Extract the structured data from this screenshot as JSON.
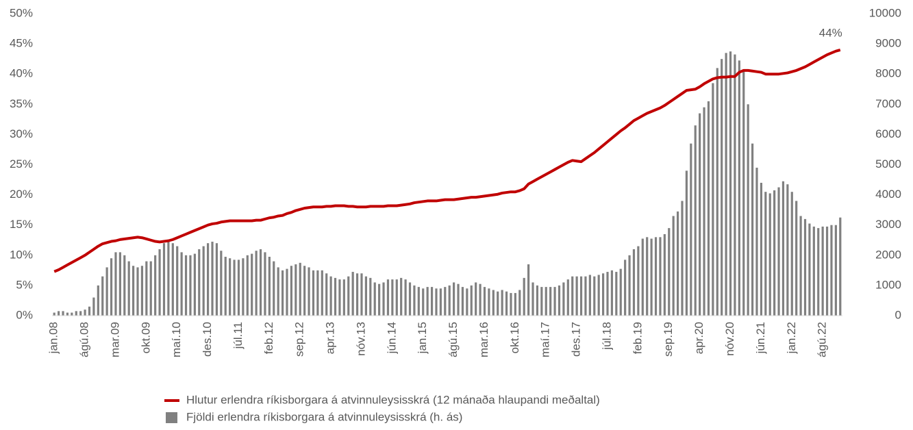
{
  "chart_data": {
    "type": "bar_line",
    "categories": [
      "jan.08",
      null,
      null,
      null,
      null,
      null,
      null,
      "ágú.08",
      null,
      null,
      null,
      null,
      null,
      null,
      "mar.09",
      null,
      null,
      null,
      null,
      null,
      null,
      "okt.09",
      null,
      null,
      null,
      null,
      null,
      null,
      "maí.10",
      null,
      null,
      null,
      null,
      null,
      null,
      "des.10",
      null,
      null,
      null,
      null,
      null,
      null,
      "júl.11",
      null,
      null,
      null,
      null,
      null,
      null,
      "feb.12",
      null,
      null,
      null,
      null,
      null,
      null,
      "sep.12",
      null,
      null,
      null,
      null,
      null,
      null,
      "apr.13",
      null,
      null,
      null,
      null,
      null,
      null,
      "nóv.13",
      null,
      null,
      null,
      null,
      null,
      null,
      "jún.14",
      null,
      null,
      null,
      null,
      null,
      null,
      "jan.15",
      null,
      null,
      null,
      null,
      null,
      null,
      "ágú.15",
      null,
      null,
      null,
      null,
      null,
      null,
      "mar.16",
      null,
      null,
      null,
      null,
      null,
      null,
      "okt.16",
      null,
      null,
      null,
      null,
      null,
      null,
      "maí.17",
      null,
      null,
      null,
      null,
      null,
      null,
      "des.17",
      null,
      null,
      null,
      null,
      null,
      null,
      "júl.18",
      null,
      null,
      null,
      null,
      null,
      null,
      "feb.19",
      null,
      null,
      null,
      null,
      null,
      null,
      "sep.19",
      null,
      null,
      null,
      null,
      null,
      null,
      "apr.20",
      null,
      null,
      null,
      null,
      null,
      null,
      "nóv.20",
      null,
      null,
      null,
      null,
      null,
      null,
      "jún.21",
      null,
      null,
      null,
      null,
      null,
      null,
      "jan.22",
      null,
      null,
      null,
      null,
      null,
      null,
      "ágú.22",
      null,
      null,
      null,
      null
    ],
    "series": [
      {
        "name": "Hlutur erlendra ríkisborgara á atvinnuleysisskrá (12 mánaða hlaupandi meðaltal)",
        "kind": "line",
        "color": "#c00000",
        "values": [
          7.3,
          7.6,
          8.0,
          8.4,
          8.8,
          9.2,
          9.6,
          10.0,
          10.5,
          11.0,
          11.5,
          11.9,
          12.1,
          12.3,
          12.4,
          12.6,
          12.7,
          12.8,
          12.9,
          13.0,
          12.9,
          12.7,
          12.5,
          12.3,
          12.2,
          12.3,
          12.4,
          12.6,
          12.9,
          13.2,
          13.5,
          13.8,
          14.1,
          14.4,
          14.7,
          15.0,
          15.2,
          15.3,
          15.5,
          15.6,
          15.7,
          15.7,
          15.7,
          15.7,
          15.7,
          15.7,
          15.8,
          15.8,
          16.0,
          16.2,
          16.3,
          16.5,
          16.6,
          16.9,
          17.1,
          17.4,
          17.6,
          17.8,
          17.9,
          18.0,
          18.0,
          18.0,
          18.1,
          18.1,
          18.2,
          18.2,
          18.2,
          18.1,
          18.1,
          18.0,
          18.0,
          18.0,
          18.1,
          18.1,
          18.1,
          18.1,
          18.2,
          18.2,
          18.2,
          18.3,
          18.4,
          18.5,
          18.7,
          18.8,
          18.9,
          19.0,
          19.0,
          19.0,
          19.1,
          19.2,
          19.2,
          19.2,
          19.3,
          19.4,
          19.5,
          19.6,
          19.6,
          19.7,
          19.8,
          19.9,
          20.0,
          20.1,
          20.3,
          20.4,
          20.5,
          20.5,
          20.7,
          21.0,
          21.8,
          22.2,
          22.6,
          23.0,
          23.4,
          23.8,
          24.2,
          24.6,
          25.0,
          25.4,
          25.7,
          25.6,
          25.5,
          26.0,
          26.5,
          27.0,
          27.6,
          28.2,
          28.8,
          29.4,
          30.0,
          30.6,
          31.1,
          31.7,
          32.3,
          32.7,
          33.1,
          33.5,
          33.8,
          34.1,
          34.4,
          34.8,
          35.3,
          35.8,
          36.3,
          36.8,
          37.3,
          37.4,
          37.5,
          37.9,
          38.4,
          38.8,
          39.2,
          39.4,
          39.5,
          39.5,
          39.6,
          39.6,
          40.3,
          40.6,
          40.6,
          40.5,
          40.4,
          40.3,
          40.0,
          40.0,
          40.0,
          40.0,
          40.1,
          40.2,
          40.4,
          40.6,
          40.9,
          41.2,
          41.6,
          42.0,
          42.4,
          42.8,
          43.2,
          43.5,
          43.8,
          44.0
        ],
        "value_labels": [
          null,
          null,
          null,
          null,
          null,
          null,
          null,
          null,
          null,
          null,
          null,
          null,
          null,
          null,
          null,
          null,
          null,
          null,
          null,
          null,
          null,
          null,
          null,
          null,
          null,
          null,
          null,
          null,
          null,
          null,
          null,
          null,
          null,
          null,
          null,
          null,
          null,
          null,
          null,
          null,
          null,
          null,
          null,
          null,
          null,
          null,
          null,
          null,
          null,
          null,
          null,
          null,
          null,
          null,
          null,
          null,
          null,
          null,
          null,
          null,
          null,
          null,
          null,
          null,
          null,
          null,
          null,
          null,
          null,
          null,
          null,
          null,
          null,
          null,
          null,
          null,
          null,
          null,
          null,
          null,
          null,
          null,
          null,
          null,
          null,
          null,
          null,
          null,
          null,
          null,
          null,
          null,
          null,
          null,
          null,
          null,
          null,
          null,
          null,
          null,
          null,
          null,
          null,
          null,
          null,
          null,
          null,
          null,
          null,
          null,
          null,
          null,
          null,
          null,
          null,
          null,
          null,
          null,
          null,
          null,
          null,
          null,
          null,
          null,
          null,
          null,
          null,
          null,
          null,
          null,
          null,
          null,
          null,
          null,
          null,
          null,
          null,
          null,
          null,
          null,
          null,
          null,
          null,
          null,
          null,
          null,
          null,
          null,
          null,
          null,
          null,
          null,
          null,
          null,
          null,
          null,
          null,
          null,
          null,
          null,
          null,
          null,
          null,
          null,
          null,
          null,
          null,
          null,
          null,
          null,
          null,
          null,
          null,
          null,
          null,
          null,
          null,
          null,
          null,
          "44%"
        ]
      },
      {
        "name": "Fjöldi erlendra ríkisborgara á atvinnuleysisskrá (h. ás)",
        "kind": "bar",
        "axis": "y2",
        "color": "#808080",
        "values": [
          100,
          150,
          150,
          100,
          100,
          150,
          150,
          200,
          300,
          600,
          1000,
          1300,
          1600,
          1900,
          2100,
          2100,
          2000,
          1800,
          1650,
          1600,
          1650,
          1800,
          1800,
          2000,
          2200,
          2400,
          2450,
          2400,
          2300,
          2100,
          2000,
          2000,
          2050,
          2200,
          2300,
          2400,
          2450,
          2400,
          2150,
          1950,
          1900,
          1850,
          1850,
          1900,
          2000,
          2050,
          2150,
          2200,
          2100,
          1950,
          1800,
          1600,
          1500,
          1550,
          1650,
          1700,
          1750,
          1650,
          1600,
          1500,
          1500,
          1500,
          1400,
          1300,
          1250,
          1200,
          1200,
          1300,
          1450,
          1400,
          1400,
          1300,
          1250,
          1100,
          1050,
          1100,
          1200,
          1200,
          1200,
          1250,
          1200,
          1100,
          1000,
          950,
          900,
          950,
          950,
          900,
          900,
          950,
          1000,
          1100,
          1050,
          950,
          900,
          1000,
          1100,
          1050,
          950,
          900,
          850,
          800,
          850,
          800,
          750,
          750,
          850,
          1250,
          1700,
          1100,
          1000,
          950,
          950,
          950,
          950,
          1000,
          1100,
          1200,
          1300,
          1300,
          1300,
          1300,
          1350,
          1300,
          1350,
          1400,
          1450,
          1500,
          1450,
          1550,
          1850,
          2000,
          2200,
          2300,
          2550,
          2600,
          2550,
          2600,
          2600,
          2700,
          2900,
          3300,
          3450,
          3800,
          4800,
          5700,
          6300,
          6700,
          6900,
          7100,
          7700,
          8200,
          8500,
          8700,
          8750,
          8650,
          8450,
          8100,
          7000,
          5700,
          4900,
          4400,
          4100,
          4050,
          4150,
          4250,
          4450,
          4350,
          4100,
          3800,
          3300,
          3200,
          3050,
          2950,
          2900,
          2950,
          2950,
          3000,
          3000,
          3250
        ]
      }
    ],
    "ylim": [
      0,
      50
    ],
    "yticks": [
      {
        "value": 0,
        "label": "0%"
      },
      {
        "value": 5,
        "label": "5%"
      },
      {
        "value": 10,
        "label": "10%"
      },
      {
        "value": 15,
        "label": "15%"
      },
      {
        "value": 20,
        "label": "20%"
      },
      {
        "value": 25,
        "label": "25%"
      },
      {
        "value": 30,
        "label": "30%"
      },
      {
        "value": 35,
        "label": "35%"
      },
      {
        "value": 40,
        "label": "40%"
      },
      {
        "value": 45,
        "label": "45%"
      },
      {
        "value": 50,
        "label": "50%"
      }
    ],
    "y2lim": [
      0,
      10000
    ],
    "y2ticks": [
      0,
      1000,
      2000,
      3000,
      4000,
      5000,
      6000,
      7000,
      8000,
      9000,
      10000
    ],
    "legend": "bottom"
  }
}
